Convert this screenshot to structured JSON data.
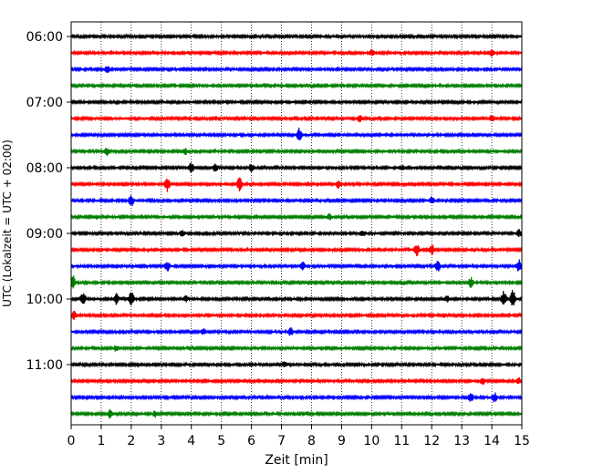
{
  "chart_data": {
    "type": "line",
    "title": "",
    "xlabel": "Zeit  [min]",
    "ylabel": "UTC (Lokalzeit = UTC + 02:00)",
    "xlim": [
      0,
      15
    ],
    "x_ticks": [
      "0",
      "1",
      "2",
      "3",
      "4",
      "5",
      "6",
      "7",
      "8",
      "9",
      "10",
      "11",
      "12",
      "13",
      "14",
      "15"
    ],
    "y_ticks": [
      "06:00",
      "07:00",
      "08:00",
      "09:00",
      "10:00",
      "11:00"
    ],
    "grid": "vertical dotted at each minute",
    "trace_interval_min": 15,
    "color_cycle": [
      "#000000",
      "#ff0000",
      "#0000ff",
      "#008000"
    ],
    "traces": [
      {
        "start": "06:00",
        "color": "#000000",
        "events": []
      },
      {
        "start": "06:15",
        "color": "#ff0000",
        "events": [
          {
            "t": 10.0,
            "amp": 3
          },
          {
            "t": 14.0,
            "amp": 3
          }
        ]
      },
      {
        "start": "06:30",
        "color": "#0000ff",
        "events": [
          {
            "t": 1.2,
            "amp": 3
          }
        ]
      },
      {
        "start": "06:45",
        "color": "#008000",
        "events": []
      },
      {
        "start": "07:00",
        "color": "#000000",
        "events": []
      },
      {
        "start": "07:15",
        "color": "#ff0000",
        "events": [
          {
            "t": 9.6,
            "amp": 3
          },
          {
            "t": 14.0,
            "amp": 3
          }
        ]
      },
      {
        "start": "07:30",
        "color": "#0000ff",
        "events": [
          {
            "t": 7.6,
            "amp": 7
          }
        ]
      },
      {
        "start": "07:45",
        "color": "#008000",
        "events": [
          {
            "t": 1.2,
            "amp": 4
          },
          {
            "t": 3.8,
            "amp": 3
          }
        ]
      },
      {
        "start": "08:00",
        "color": "#000000",
        "events": [
          {
            "t": 4.0,
            "amp": 5
          },
          {
            "t": 4.8,
            "amp": 4
          },
          {
            "t": 6.0,
            "amp": 4
          },
          {
            "t": 11.0,
            "amp": 3
          }
        ]
      },
      {
        "start": "08:15",
        "color": "#ff0000",
        "events": [
          {
            "t": 3.2,
            "amp": 8
          },
          {
            "t": 5.6,
            "amp": 7
          },
          {
            "t": 8.9,
            "amp": 4
          }
        ]
      },
      {
        "start": "08:30",
        "color": "#0000ff",
        "events": [
          {
            "t": 2.0,
            "amp": 6
          },
          {
            "t": 12.0,
            "amp": 4
          }
        ]
      },
      {
        "start": "08:45",
        "color": "#008000",
        "events": [
          {
            "t": 8.6,
            "amp": 3
          }
        ]
      },
      {
        "start": "09:00",
        "color": "#000000",
        "events": [
          {
            "t": 3.7,
            "amp": 3
          },
          {
            "t": 9.7,
            "amp": 3
          },
          {
            "t": 14.9,
            "amp": 4
          }
        ]
      },
      {
        "start": "09:15",
        "color": "#ff0000",
        "events": [
          {
            "t": 11.5,
            "amp": 6
          },
          {
            "t": 12.0,
            "amp": 5
          }
        ]
      },
      {
        "start": "09:30",
        "color": "#0000ff",
        "events": [
          {
            "t": 3.2,
            "amp": 5
          },
          {
            "t": 7.7,
            "amp": 4
          },
          {
            "t": 12.2,
            "amp": 6
          },
          {
            "t": 14.9,
            "amp": 7
          }
        ]
      },
      {
        "start": "09:45",
        "color": "#008000",
        "events": [
          {
            "t": 0.05,
            "amp": 8
          },
          {
            "t": 13.3,
            "amp": 5
          }
        ]
      },
      {
        "start": "10:00",
        "color": "#000000",
        "events": [
          {
            "t": 0.4,
            "amp": 7
          },
          {
            "t": 1.5,
            "amp": 6
          },
          {
            "t": 2.0,
            "amp": 8
          },
          {
            "t": 3.8,
            "amp": 3
          },
          {
            "t": 12.5,
            "amp": 3
          },
          {
            "t": 14.4,
            "amp": 8
          },
          {
            "t": 14.7,
            "amp": 9
          }
        ]
      },
      {
        "start": "10:15",
        "color": "#ff0000",
        "events": [
          {
            "t": 0.1,
            "amp": 4
          }
        ]
      },
      {
        "start": "10:30",
        "color": "#0000ff",
        "events": [
          {
            "t": 4.4,
            "amp": 3
          },
          {
            "t": 7.3,
            "amp": 4
          }
        ]
      },
      {
        "start": "10:45",
        "color": "#008000",
        "events": [
          {
            "t": 1.5,
            "amp": 3
          }
        ]
      },
      {
        "start": "11:00",
        "color": "#000000",
        "events": [
          {
            "t": 7.1,
            "amp": 3
          }
        ]
      },
      {
        "start": "11:15",
        "color": "#ff0000",
        "events": [
          {
            "t": 13.7,
            "amp": 3
          },
          {
            "t": 14.9,
            "amp": 3
          }
        ]
      },
      {
        "start": "11:30",
        "color": "#0000ff",
        "events": [
          {
            "t": 13.3,
            "amp": 4
          },
          {
            "t": 14.1,
            "amp": 5
          }
        ]
      },
      {
        "start": "11:45",
        "color": "#008000",
        "events": [
          {
            "t": 1.3,
            "amp": 4
          },
          {
            "t": 2.8,
            "amp": 3
          }
        ]
      }
    ]
  }
}
